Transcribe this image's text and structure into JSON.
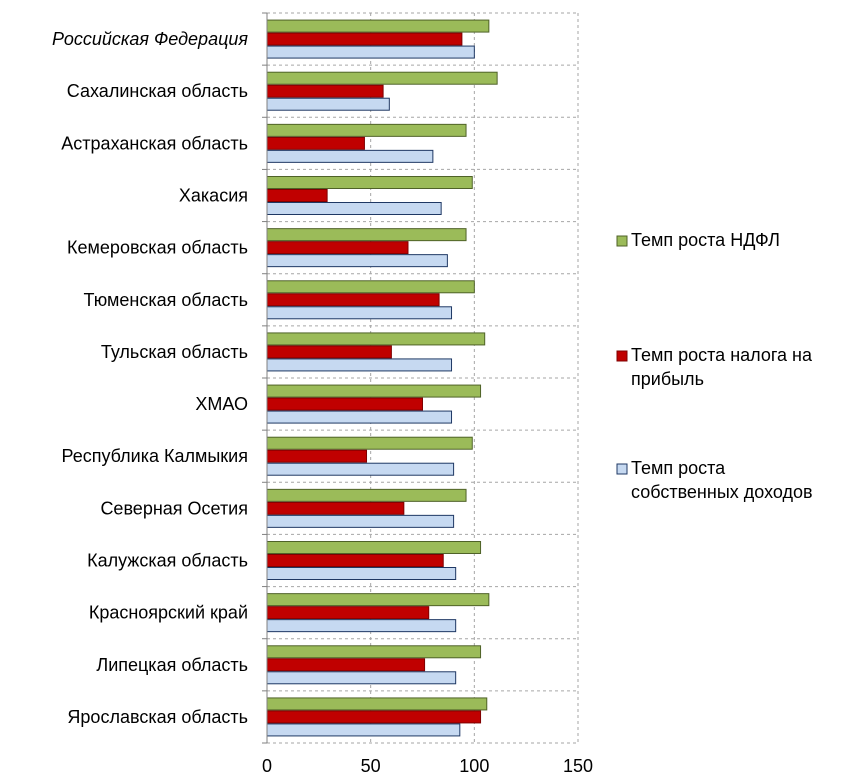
{
  "chart_data": {
    "type": "bar",
    "orientation": "horizontal",
    "categories": [
      "Российская Федерация",
      "Сахалинская область",
      "Астраханская область",
      "Хакасия",
      "Кемеровская область",
      "Тюменская область",
      "Тульская область",
      "ХМАО",
      "Республика Калмыкия",
      "Северная Осетия",
      "Калужская область",
      "Красноярский край",
      "Липецкая область",
      "Ярославская область"
    ],
    "italic_categories": [
      "Российская Федерация"
    ],
    "series": [
      {
        "name": "Темп роста НДФЛ",
        "color": "#9bbb59",
        "stroke": "#4f6228",
        "values": [
          107,
          111,
          96,
          99,
          96,
          100,
          105,
          103,
          99,
          96,
          103,
          107,
          103,
          106
        ]
      },
      {
        "name": "Темп роста налога на прибыль",
        "color": "#c00000",
        "stroke": "#7f0000",
        "values": [
          94,
          56,
          47,
          29,
          68,
          83,
          60,
          75,
          48,
          66,
          85,
          78,
          76,
          103
        ]
      },
      {
        "name": "Темп роста собственных доходов",
        "color": "#c6d9f1",
        "stroke": "#1f3864",
        "values": [
          100,
          59,
          80,
          84,
          87,
          89,
          89,
          89,
          90,
          90,
          91,
          91,
          91,
          93
        ]
      }
    ],
    "legend_labels": [
      [
        "Темп  роста НДФЛ"
      ],
      [
        "Темп роста налога на",
        "прибыль"
      ],
      [
        "Темп роста",
        "собственных доходов"
      ]
    ],
    "xlim": [
      0,
      150
    ],
    "xticks": [
      "0",
      "50",
      "100",
      "150"
    ],
    "grid": true,
    "legend_position": "right"
  }
}
